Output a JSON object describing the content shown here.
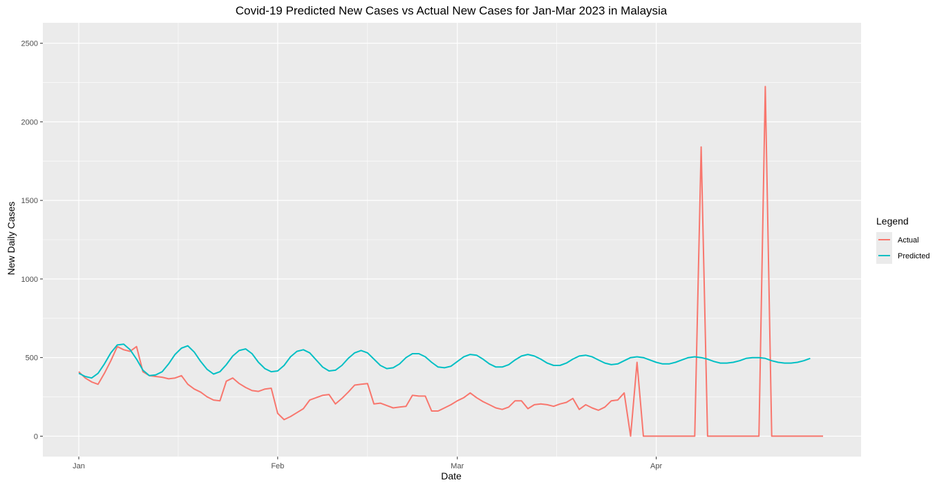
{
  "chart_data": {
    "type": "line",
    "title": "Covid-19 Predicted New Cases vs Actual New Cases for Jan-Mar 2023 in Malaysia",
    "xlabel": "Date",
    "ylabel": "New Daily Cases",
    "x_ticks": [
      "Jan",
      "Feb",
      "Mar",
      "Apr"
    ],
    "y_ticks": [
      0,
      500,
      1000,
      1500,
      2000,
      2500
    ],
    "ylim": [
      -130,
      2630
    ],
    "grid": true,
    "legend_title": "Legend",
    "legend_position": "right",
    "series": [
      {
        "name": "Actual",
        "color": "#F8766D",
        "values": [
          410,
          370,
          345,
          330,
          400,
          480,
          570,
          550,
          540,
          570,
          410,
          385,
          380,
          375,
          365,
          370,
          385,
          330,
          300,
          280,
          250,
          230,
          225,
          350,
          370,
          335,
          310,
          290,
          285,
          300,
          305,
          145,
          105,
          125,
          150,
          175,
          230,
          245,
          260,
          265,
          205,
          240,
          280,
          325,
          330,
          335,
          205,
          210,
          195,
          180,
          185,
          190,
          260,
          255,
          255,
          160,
          160,
          180,
          200,
          225,
          245,
          275,
          245,
          220,
          200,
          180,
          170,
          185,
          225,
          225,
          175,
          200,
          205,
          200,
          190,
          205,
          215,
          240,
          170,
          200,
          180,
          165,
          185,
          225,
          230,
          275,
          0,
          470,
          0,
          0,
          0,
          0,
          0,
          0,
          0,
          0,
          0,
          1840,
          0,
          0,
          0,
          0,
          0,
          0,
          0,
          0,
          0,
          2225,
          0,
          0,
          0,
          0,
          0,
          0,
          0,
          0,
          0
        ]
      },
      {
        "name": "Predicted",
        "color": "#00BFC4",
        "values": [
          400,
          380,
          370,
          400,
          460,
          530,
          580,
          585,
          550,
          490,
          420,
          385,
          390,
          410,
          460,
          520,
          560,
          575,
          535,
          475,
          425,
          395,
          410,
          455,
          510,
          545,
          555,
          525,
          470,
          430,
          410,
          415,
          450,
          505,
          540,
          550,
          530,
          485,
          440,
          415,
          420,
          450,
          495,
          530,
          545,
          530,
          490,
          450,
          430,
          435,
          460,
          500,
          525,
          525,
          505,
          470,
          440,
          435,
          445,
          475,
          505,
          520,
          515,
          490,
          460,
          440,
          440,
          455,
          485,
          510,
          520,
          510,
          490,
          465,
          450,
          450,
          465,
          490,
          510,
          515,
          505,
          485,
          465,
          455,
          460,
          480,
          500,
          505,
          500,
          485,
          470,
          460,
          460,
          470,
          485,
          500,
          505,
          500,
          490,
          475,
          465,
          465,
          470,
          480,
          495,
          500,
          500,
          495,
          480,
          470,
          465,
          465,
          470,
          480,
          495
        ]
      }
    ]
  }
}
